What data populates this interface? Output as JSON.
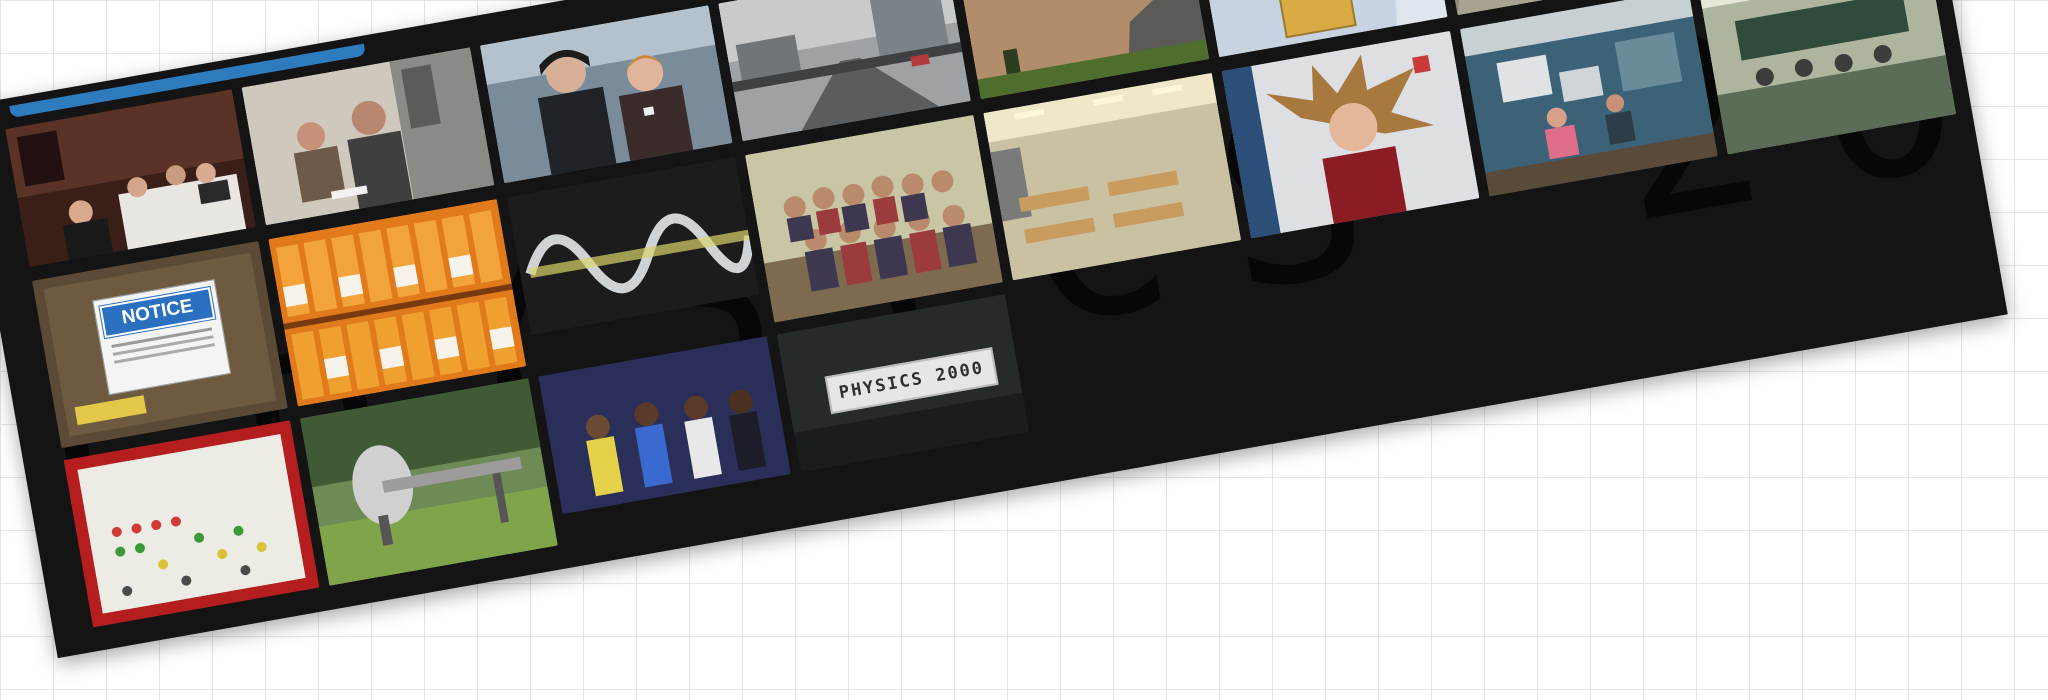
{
  "watermark_text": "PHYSICS 2000",
  "sign_text": "PHYSICS 2000",
  "notice_text": "NOTICE",
  "colors": {
    "accent": "#2e7bbd",
    "background": "#141414"
  },
  "photos": [
    "dinner-party-photo",
    "lab-two-men-photo",
    "two-people-portrait-photo",
    "street-scene-photo",
    "game-screen-photo",
    "gold-slide-photo",
    "hallway-stairs-photo",
    "man-at-railing-photo",
    "notice-sign-photo",
    "bottles-shelf-photo",
    "spring-coil-photo",
    "group-photo",
    "classroom-photo",
    "static-hair-photo",
    "lab-equipment-photo",
    "lecture-hall-photo",
    "led-board-photo",
    "sculpture-lawn-photo",
    "performers-photo",
    "physics-2000-sign-photo"
  ]
}
